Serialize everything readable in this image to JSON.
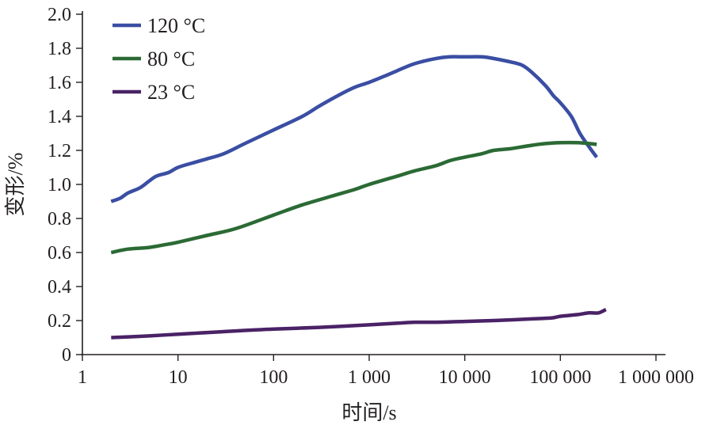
{
  "chart_data": {
    "type": "line",
    "xlabel": "时间/s",
    "ylabel": "变形/%",
    "x_scale": "log",
    "xlim": [
      1,
      1000000
    ],
    "ylim": [
      0,
      2.0
    ],
    "x_ticks": [
      1,
      10,
      100,
      1000,
      10000,
      100000,
      1000000
    ],
    "x_tick_labels": [
      "1",
      "10",
      "100",
      "1 000",
      "10 000",
      "100 000",
      "1 000 000"
    ],
    "y_ticks": [
      0,
      0.2,
      0.4,
      0.6,
      0.8,
      1.0,
      1.2,
      1.4,
      1.6,
      1.8,
      2.0
    ],
    "y_tick_labels": [
      "0",
      "0.2",
      "0.4",
      "0.6",
      "0.8",
      "1.0",
      "1.2",
      "1.4",
      "1.6",
      "1.8",
      "2.0"
    ],
    "grid": false,
    "legend_position": "top-left",
    "series": [
      {
        "name": "120 °C",
        "color": "#3a4ea3",
        "points": [
          [
            2,
            0.9
          ],
          [
            2.5,
            0.92
          ],
          [
            3,
            0.95
          ],
          [
            4,
            0.98
          ],
          [
            5,
            1.02
          ],
          [
            6,
            1.05
          ],
          [
            8,
            1.07
          ],
          [
            10,
            1.1
          ],
          [
            15,
            1.13
          ],
          [
            20,
            1.15
          ],
          [
            30,
            1.18
          ],
          [
            50,
            1.24
          ],
          [
            100,
            1.32
          ],
          [
            200,
            1.4
          ],
          [
            300,
            1.46
          ],
          [
            500,
            1.53
          ],
          [
            700,
            1.57
          ],
          [
            1000,
            1.6
          ],
          [
            1500,
            1.64
          ],
          [
            2000,
            1.67
          ],
          [
            3000,
            1.71
          ],
          [
            5000,
            1.74
          ],
          [
            7000,
            1.75
          ],
          [
            10000,
            1.75
          ],
          [
            15000,
            1.75
          ],
          [
            20000,
            1.74
          ],
          [
            30000,
            1.72
          ],
          [
            40000,
            1.7
          ],
          [
            50000,
            1.66
          ],
          [
            70000,
            1.58
          ],
          [
            85000,
            1.52
          ],
          [
            100000,
            1.48
          ],
          [
            130000,
            1.4
          ],
          [
            160000,
            1.3
          ],
          [
            200000,
            1.22
          ],
          [
            240000,
            1.16
          ]
        ]
      },
      {
        "name": "80 °C",
        "color": "#2b6a35",
        "points": [
          [
            2,
            0.6
          ],
          [
            3,
            0.62
          ],
          [
            5,
            0.63
          ],
          [
            8,
            0.65
          ],
          [
            10,
            0.66
          ],
          [
            20,
            0.7
          ],
          [
            40,
            0.74
          ],
          [
            100,
            0.82
          ],
          [
            200,
            0.88
          ],
          [
            400,
            0.93
          ],
          [
            700,
            0.97
          ],
          [
            1000,
            1.0
          ],
          [
            2000,
            1.05
          ],
          [
            3000,
            1.08
          ],
          [
            5000,
            1.11
          ],
          [
            7000,
            1.14
          ],
          [
            10000,
            1.16
          ],
          [
            15000,
            1.18
          ],
          [
            20000,
            1.2
          ],
          [
            30000,
            1.21
          ],
          [
            50000,
            1.23
          ],
          [
            70000,
            1.24
          ],
          [
            100000,
            1.245
          ],
          [
            150000,
            1.245
          ],
          [
            200000,
            1.24
          ],
          [
            240000,
            1.235
          ]
        ]
      },
      {
        "name": "23 °C",
        "color": "#4a2266",
        "points": [
          [
            2,
            0.1
          ],
          [
            5,
            0.11
          ],
          [
            10,
            0.12
          ],
          [
            30,
            0.135
          ],
          [
            100,
            0.15
          ],
          [
            300,
            0.16
          ],
          [
            1000,
            0.175
          ],
          [
            2000,
            0.185
          ],
          [
            3000,
            0.19
          ],
          [
            5000,
            0.19
          ],
          [
            10000,
            0.195
          ],
          [
            20000,
            0.2
          ],
          [
            50000,
            0.21
          ],
          [
            80000,
            0.215
          ],
          [
            100000,
            0.225
          ],
          [
            150000,
            0.235
          ],
          [
            200000,
            0.245
          ],
          [
            250000,
            0.245
          ],
          [
            300000,
            0.265
          ]
        ]
      }
    ]
  }
}
